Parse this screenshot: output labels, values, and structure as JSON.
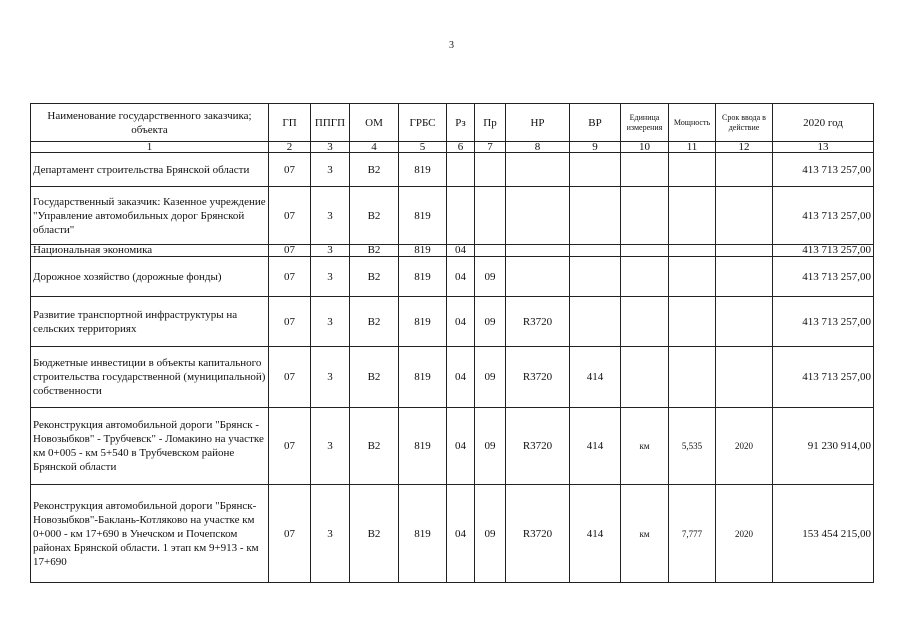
{
  "page_number": "3",
  "table": {
    "headers": [
      "Наименование государственного заказчика; объекта",
      "ГП",
      "ППГП",
      "ОМ",
      "ГРБС",
      "Рз",
      "Пр",
      "НР",
      "ВР",
      "Единица измерения",
      "Мощность",
      "Срок ввода в действие",
      "2020 год"
    ],
    "column_numbers": [
      "1",
      "2",
      "3",
      "4",
      "5",
      "6",
      "7",
      "8",
      "9",
      "10",
      "11",
      "12",
      "13"
    ],
    "rows": [
      {
        "name": "Департамент строительства Брянской области",
        "gp": "07",
        "ppgp": "3",
        "om": "В2",
        "grbs": "819",
        "rz": "",
        "pr": "",
        "nr": "",
        "vr": "",
        "unit": "",
        "capacity": "",
        "term": "",
        "amount": "413 713 257,00"
      },
      {
        "name": "Государственный заказчик: Казенное учреждение \"Управление автомобильных дорог Брянской области\"",
        "gp": "07",
        "ppgp": "3",
        "om": "В2",
        "grbs": "819",
        "rz": "",
        "pr": "",
        "nr": "",
        "vr": "",
        "unit": "",
        "capacity": "",
        "term": "",
        "amount": "413 713 257,00"
      },
      {
        "name": "Национальная экономика",
        "gp": "07",
        "ppgp": "3",
        "om": "В2",
        "grbs": "819",
        "rz": "04",
        "pr": "",
        "nr": "",
        "vr": "",
        "unit": "",
        "capacity": "",
        "term": "",
        "amount": "413 713 257,00"
      },
      {
        "name": "Дорожное хозяйство (дорожные фонды)",
        "gp": "07",
        "ppgp": "3",
        "om": "В2",
        "grbs": "819",
        "rz": "04",
        "pr": "09",
        "nr": "",
        "vr": "",
        "unit": "",
        "capacity": "",
        "term": "",
        "amount": "413 713 257,00"
      },
      {
        "name": "Развитие транспортной инфраструктуры на сельских территориях",
        "gp": "07",
        "ppgp": "3",
        "om": "В2",
        "grbs": "819",
        "rz": "04",
        "pr": "09",
        "nr": "R3720",
        "vr": "",
        "unit": "",
        "capacity": "",
        "term": "",
        "amount": "413 713 257,00"
      },
      {
        "name": "Бюджетные инвестиции в объекты капитального строительства государственной (муниципальной) собственности",
        "gp": "07",
        "ppgp": "3",
        "om": "В2",
        "grbs": "819",
        "rz": "04",
        "pr": "09",
        "nr": "R3720",
        "vr": "414",
        "unit": "",
        "capacity": "",
        "term": "",
        "amount": "413 713 257,00"
      },
      {
        "name": "Реконструкция автомобильной дороги \"Брянск - Новозыбков\" - Трубчевск\" - Ломакино на участке км 0+005 - км 5+540 в Трубчевском районе Брянской области",
        "gp": "07",
        "ppgp": "3",
        "om": "В2",
        "grbs": "819",
        "rz": "04",
        "pr": "09",
        "nr": "R3720",
        "vr": "414",
        "unit": "км",
        "capacity": "5,535",
        "term": "2020",
        "amount": "91 230 914,00"
      },
      {
        "name": "Реконструкция автомобильной дороги \"Брянск-Новозыбков\"-Баклань-Котляково на участке км 0+000 - км 17+690 в Унечском и Почепском районах Брянской области. 1 этап км 9+913 - км 17+690",
        "gp": "07",
        "ppgp": "3",
        "om": "В2",
        "grbs": "819",
        "rz": "04",
        "pr": "09",
        "nr": "R3720",
        "vr": "414",
        "unit": "км",
        "capacity": "7,777",
        "term": "2020",
        "amount": "153 454 215,00"
      }
    ]
  }
}
